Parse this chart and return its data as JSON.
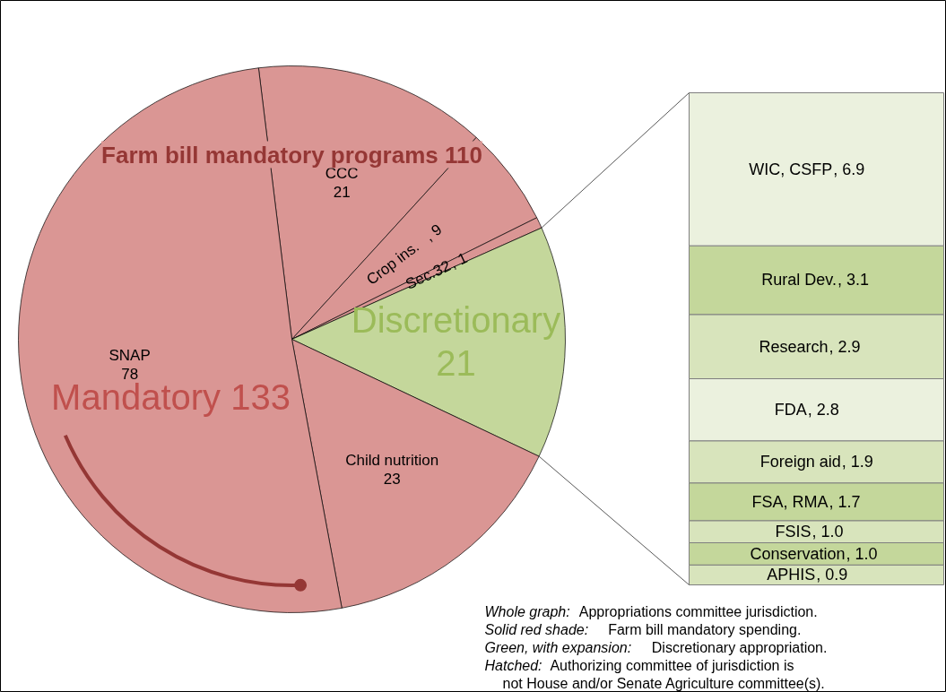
{
  "chart_data": [
    {
      "type": "pie",
      "categories": [
        "CCC",
        "Crop ins.",
        "Sec.32",
        "Discretionary",
        "Child nutrition",
        "SNAP"
      ],
      "values": [
        21,
        9,
        1,
        21,
        23,
        78
      ],
      "colors": [
        "#da9694",
        "#da9694",
        "#da9694",
        "#c4d79b",
        "#da9694",
        "#da9694"
      ],
      "value_labels": [
        "21",
        ", 9",
        ", 1",
        "21",
        "23",
        "78"
      ],
      "annotations": [
        "Farm bill mandatory programs 110",
        "Mandatory 133",
        "Whole graph: Appropriations committee jurisdiction.",
        "Solid red shade: Farm bill mandatory spending.",
        "Green, with expansion: Discretionary appropriation.",
        "Hatched: Authorizing committee of jurisdiction is",
        "not  House and/or Senate Agriculture committee(s)."
      ]
    },
    {
      "type": "bar",
      "stacked": true,
      "categories": [
        null
      ],
      "series": [
        {
          "name": "APHIS",
          "color": "#d8e4bc",
          "values": [
            0.9
          ],
          "value_labels": [
            ", 0.9"
          ]
        },
        {
          "name": "Conservation",
          "color": "#c4d79b",
          "values": [
            1.0
          ],
          "value_labels": [
            ", 1.0"
          ]
        },
        {
          "name": "FSIS",
          "color": "#d8e4bc",
          "values": [
            1.0
          ],
          "value_labels": [
            ", 1.0"
          ]
        },
        {
          "name": "FSA, RMA",
          "color": "#c4d79b",
          "values": [
            1.7
          ],
          "value_labels": [
            ", 1.7"
          ]
        },
        {
          "name": "Foreign aid",
          "color": "#d8e4bc",
          "values": [
            1.9
          ],
          "value_labels": [
            ", 1.9"
          ]
        },
        {
          "name": "FDA",
          "color": "#ebf1de",
          "values": [
            2.8
          ],
          "value_labels": [
            ", 2.8"
          ]
        },
        {
          "name": "Research",
          "color": "#d8e4bc",
          "values": [
            2.9
          ],
          "value_labels": [
            ", 2.9"
          ]
        },
        {
          "name": "Rural Dev.",
          "color": "#c4d79b",
          "values": [
            3.1
          ],
          "value_labels": [
            ", 3.1"
          ]
        },
        {
          "name": "WIC, CSFP",
          "color": "#ebf1de",
          "values": [
            6.9
          ],
          "value_labels": [
            ", 6.9"
          ]
        }
      ]
    }
  ]
}
